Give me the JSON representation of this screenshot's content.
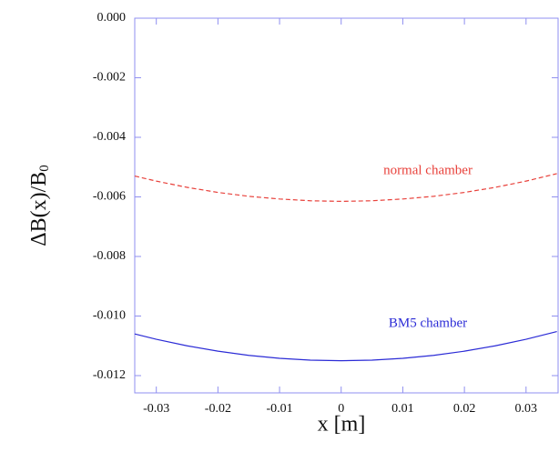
{
  "chart_data": {
    "type": "line",
    "x_label": "x [m]",
    "y_label": "ΔB(x)/B",
    "y_label_subscript": "0",
    "x": [
      -0.0335,
      -0.03,
      -0.025,
      -0.02,
      -0.015,
      -0.01,
      -0.005,
      0,
      0.005,
      0.01,
      0.015,
      0.02,
      0.025,
      0.03,
      0.035
    ],
    "series": [
      {
        "name": "normal chamber",
        "color": "#e8403a",
        "dash": true,
        "values": [
          -0.0053,
          -0.00547,
          -0.00568,
          -0.00585,
          -0.00598,
          -0.00607,
          -0.00613,
          -0.00615,
          -0.00613,
          -0.00607,
          -0.00598,
          -0.00585,
          -0.00568,
          -0.00547,
          -0.00522
        ]
      },
      {
        "name": "BM5 chamber",
        "color": "#2b2bd6",
        "dash": false,
        "values": [
          -0.0106,
          -0.01078,
          -0.011,
          -0.01118,
          -0.01132,
          -0.01142,
          -0.01148,
          -0.0115,
          -0.01148,
          -0.01142,
          -0.01132,
          -0.01118,
          -0.011,
          -0.01078,
          -0.01052
        ]
      }
    ],
    "xlim": [
      -0.0335,
      0.0352
    ],
    "ylim": [
      -0.01258,
      0
    ],
    "xticks": [
      -0.03,
      -0.02,
      -0.01,
      0,
      0.01,
      0.02,
      0.03
    ],
    "yticks": [
      {
        "value": 0,
        "label": "0.000"
      },
      {
        "value": -0.002,
        "label": "-0.002"
      },
      {
        "value": -0.004,
        "label": "-0.004"
      },
      {
        "value": -0.006,
        "label": "-0.006"
      },
      {
        "value": -0.008,
        "label": "-0.008"
      },
      {
        "value": -0.01,
        "label": "-0.010"
      },
      {
        "value": -0.012,
        "label": "-0.012"
      }
    ]
  }
}
